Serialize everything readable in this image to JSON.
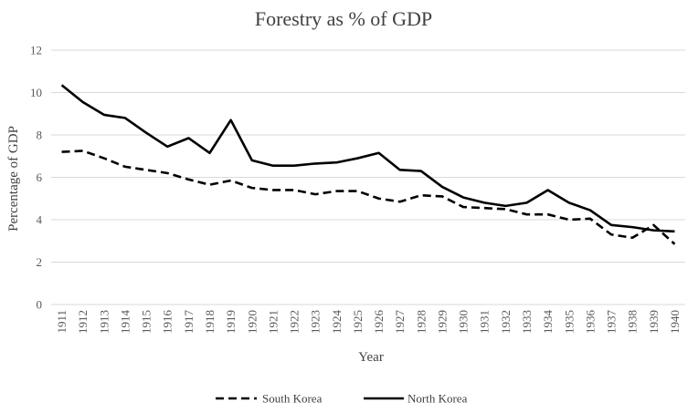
{
  "chart_data": {
    "type": "line",
    "title": "Forestry as % of GDP",
    "xlabel": "Year",
    "ylabel": "Percentage of GDP",
    "ylim": [
      0,
      12
    ],
    "yticks": [
      "0",
      "2",
      "4",
      "6",
      "8",
      "10",
      "12"
    ],
    "grid": true,
    "legend_position": "bottom",
    "categories": [
      "1911",
      "1912",
      "1913",
      "1914",
      "1915",
      "1916",
      "1917",
      "1918",
      "1919",
      "1920",
      "1921",
      "1922",
      "1923",
      "1924",
      "1925",
      "1926",
      "1927",
      "1928",
      "1929",
      "1930",
      "1931",
      "1932",
      "1933",
      "1934",
      "1935",
      "1936",
      "1937",
      "1938",
      "1939",
      "1940"
    ],
    "series": [
      {
        "name": "South Korea",
        "style": "dashed",
        "color": "#000000",
        "values": [
          7.2,
          7.25,
          6.9,
          6.5,
          6.35,
          6.2,
          5.9,
          5.65,
          5.85,
          5.5,
          5.4,
          5.4,
          5.2,
          5.35,
          5.35,
          5.0,
          4.85,
          5.15,
          5.1,
          4.6,
          4.55,
          4.5,
          4.25,
          4.25,
          4.0,
          4.05,
          3.3,
          3.15,
          3.75,
          2.85
        ]
      },
      {
        "name": "North Korea",
        "style": "solid",
        "color": "#000000",
        "values": [
          10.35,
          9.55,
          8.95,
          8.8,
          8.1,
          7.45,
          7.85,
          7.15,
          8.7,
          6.8,
          6.55,
          6.55,
          6.65,
          6.7,
          6.9,
          7.15,
          6.35,
          6.3,
          5.55,
          5.05,
          4.8,
          4.65,
          4.8,
          5.4,
          4.8,
          4.45,
          3.75,
          3.65,
          3.5,
          3.45
        ]
      }
    ]
  }
}
